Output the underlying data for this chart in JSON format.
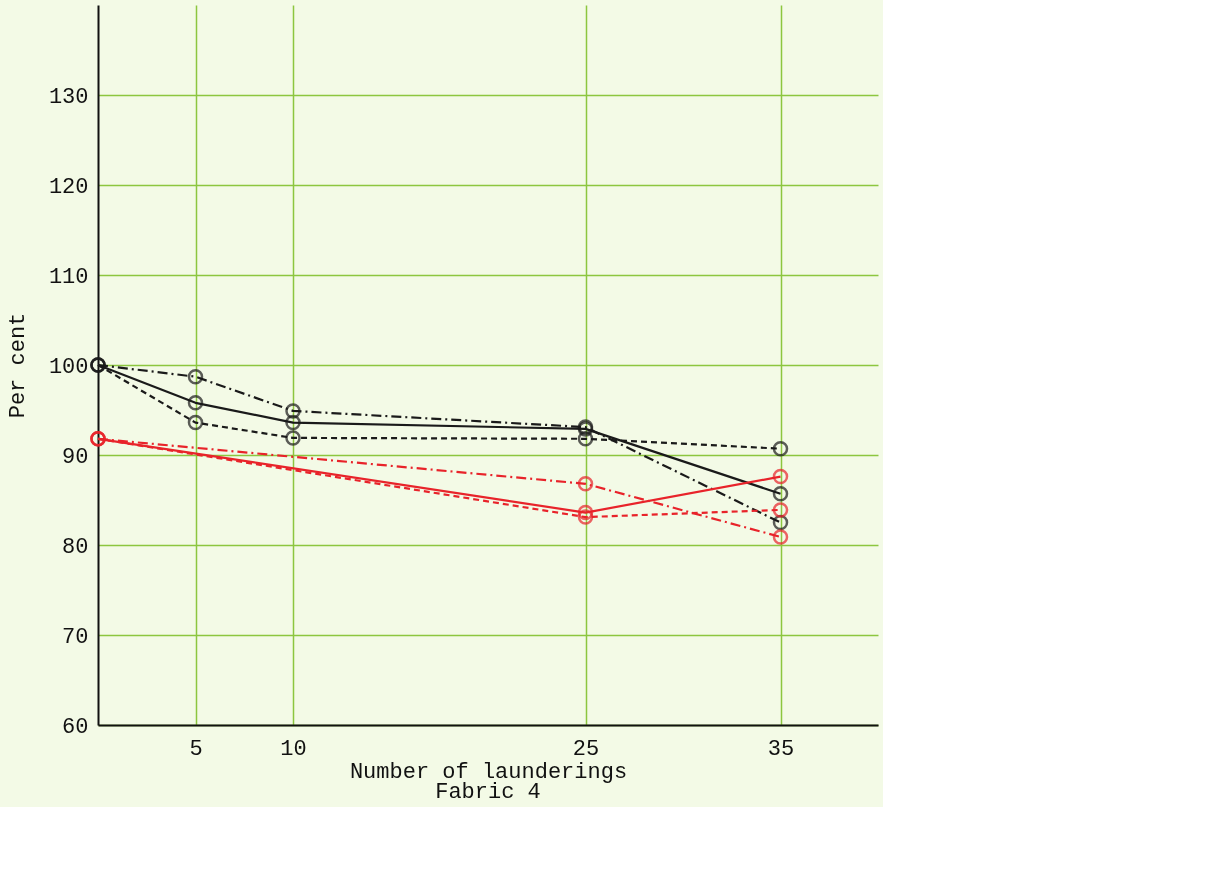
{
  "chart_data": {
    "type": "line",
    "title": "Fabric 4",
    "xlabel": "Number of launderings",
    "ylabel": "Per cent",
    "xlim": [
      0,
      40
    ],
    "xticks": [
      5,
      10,
      25,
      35
    ],
    "ylim": [
      60,
      140
    ],
    "yticks": [
      60,
      70,
      80,
      90,
      100,
      110,
      120,
      130
    ],
    "grid": true,
    "marker": "circle",
    "series": [
      {
        "color": "#1a1a1a",
        "line_style": "dashdot",
        "x": [
          0,
          5,
          10,
          25,
          35
        ],
        "values": [
          100,
          98.7,
          94.9,
          93.1,
          82.5
        ]
      },
      {
        "color": "#1a1a1a",
        "line_style": "solid",
        "x": [
          0,
          5,
          10,
          25,
          35
        ],
        "values": [
          100,
          95.8,
          93.6,
          92.9,
          85.7
        ]
      },
      {
        "color": "#1a1a1a",
        "line_style": "dashed",
        "x": [
          0,
          5,
          10,
          25,
          35
        ],
        "values": [
          100,
          93.6,
          91.9,
          91.8,
          90.7
        ]
      },
      {
        "color": "#e8232a",
        "line_style": "dashdot",
        "x": [
          0,
          25,
          35
        ],
        "values": [
          91.8,
          86.8,
          80.9
        ]
      },
      {
        "color": "#e8232a",
        "line_style": "solid",
        "x": [
          0,
          25,
          35
        ],
        "values": [
          91.8,
          83.6,
          87.6
        ]
      },
      {
        "color": "#e8232a",
        "line_style": "dashed",
        "x": [
          0,
          25,
          35
        ],
        "values": [
          91.8,
          83.1,
          83.9
        ]
      }
    ]
  }
}
